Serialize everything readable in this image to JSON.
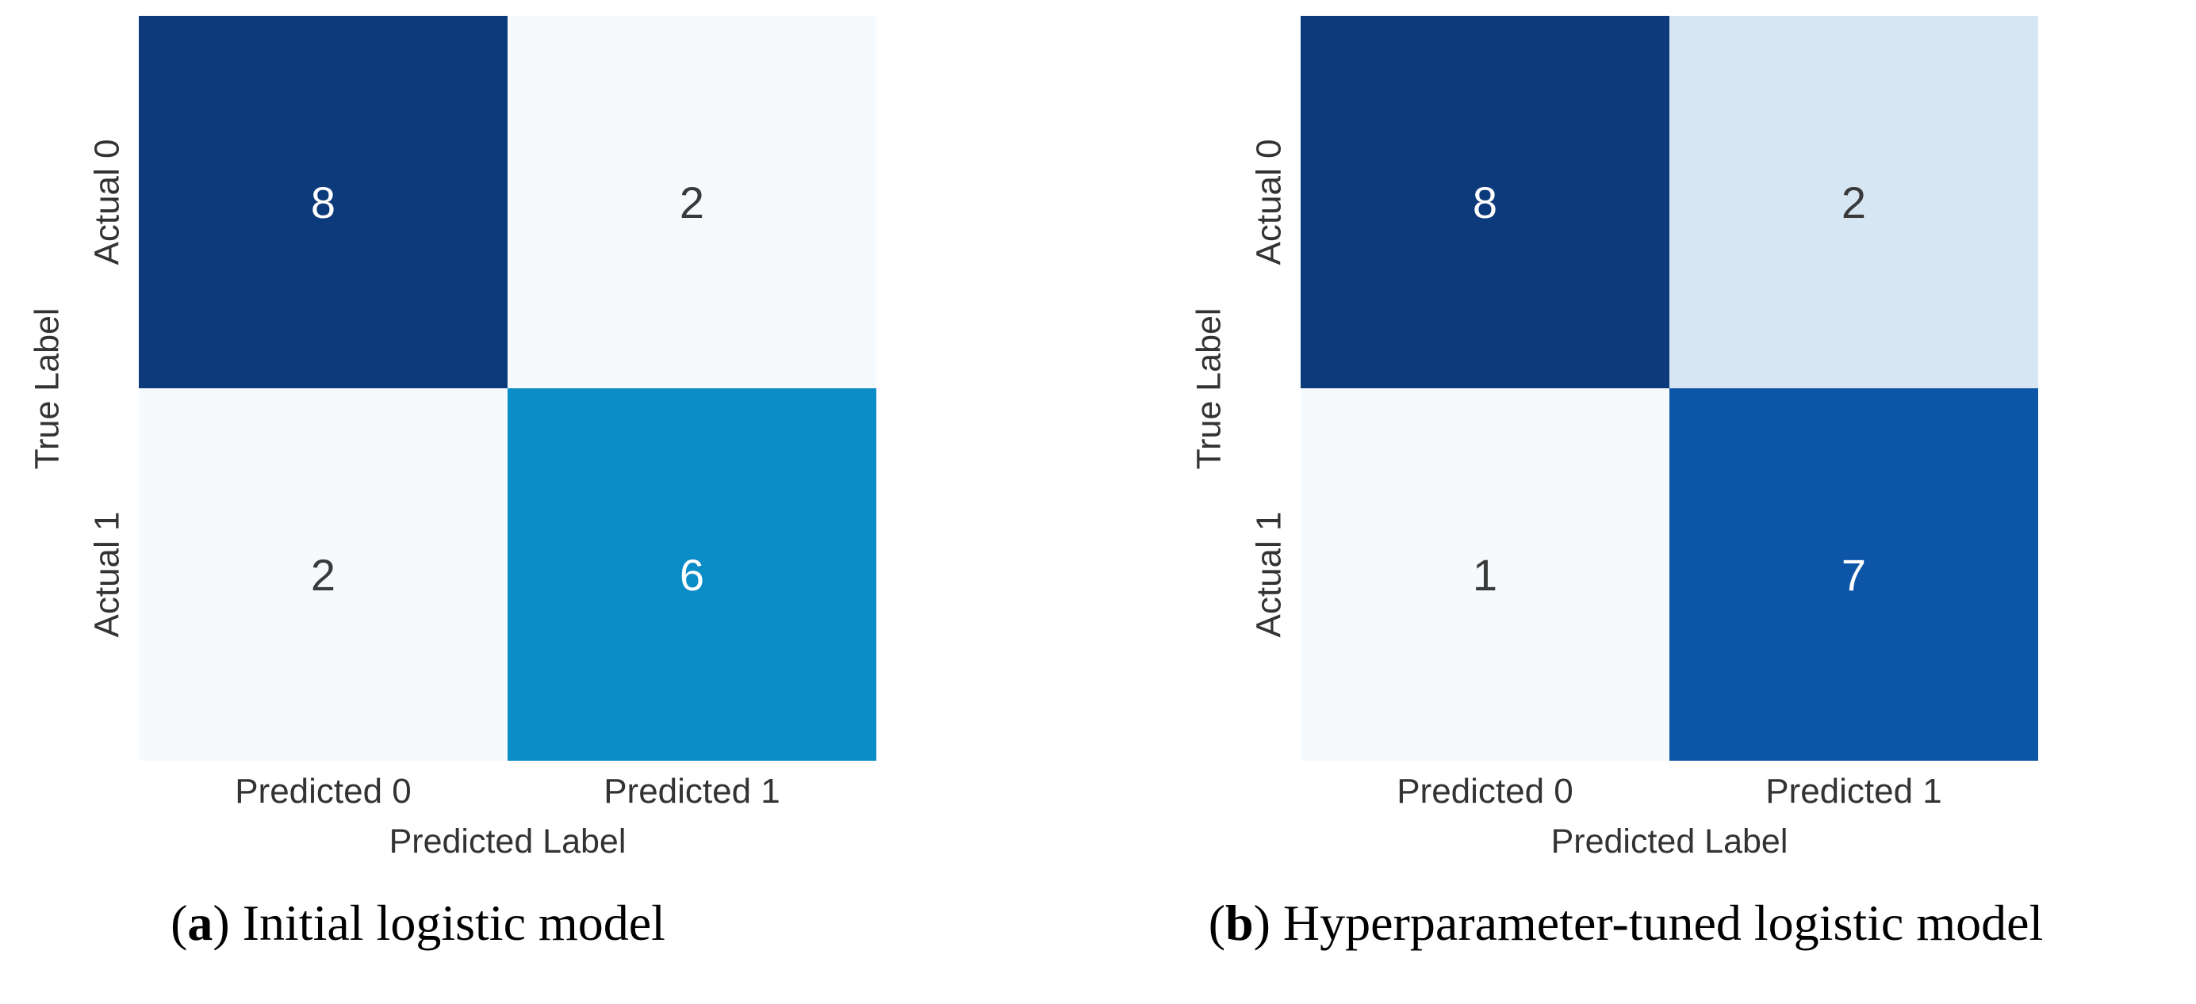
{
  "figure": {
    "panels": [
      {
        "caption": {
          "open": "(",
          "letter": "a",
          "rest": ") Initial logistic model"
        },
        "ylabel": "True Label",
        "xlabel": "Predicted Label",
        "yticks": [
          "Actual 0",
          "Actual 1"
        ],
        "xticks": [
          "Predicted 0",
          "Predicted 1"
        ],
        "cells": [
          {
            "value": "8",
            "bg": "#0c3a7a",
            "fg": "#ffffff"
          },
          {
            "value": "2",
            "bg": "#f6fafd",
            "fg": "#3a3a3a"
          },
          {
            "value": "2",
            "bg": "#f6fafd",
            "fg": "#3a3a3a"
          },
          {
            "value": "6",
            "bg": "#0a8cc6",
            "fg": "#ffffff"
          }
        ]
      },
      {
        "caption": {
          "open": "(",
          "letter": "b",
          "rest": ") Hyperparameter-tuned logistic model"
        },
        "ylabel": "True Label",
        "xlabel": "Predicted Label",
        "yticks": [
          "Actual 0",
          "Actual 1"
        ],
        "xticks": [
          "Predicted 0",
          "Predicted 1"
        ],
        "cells": [
          {
            "value": "8",
            "bg": "#0c3a7a",
            "fg": "#ffffff"
          },
          {
            "value": "2",
            "bg": "#d7e6f3",
            "fg": "#3a3a3a"
          },
          {
            "value": "1",
            "bg": "#f6fafd",
            "fg": "#3a3a3a"
          },
          {
            "value": "7",
            "bg": "#0d55a6",
            "fg": "#ffffff"
          }
        ]
      }
    ]
  },
  "chart_data": [
    {
      "type": "heatmap",
      "title": "(a) Initial logistic model",
      "xlabel": "Predicted Label",
      "ylabel": "True Label",
      "x_tick_labels": [
        "Predicted 0",
        "Predicted 1"
      ],
      "y_tick_labels": [
        "Actual 0",
        "Actual 1"
      ],
      "values": [
        [
          8,
          2
        ],
        [
          2,
          6
        ]
      ],
      "colormap": "Blues",
      "colorbar": false,
      "grid": false,
      "legend_position": "none"
    },
    {
      "type": "heatmap",
      "title": "(b) Hyperparameter-tuned logistic model",
      "xlabel": "Predicted Label",
      "ylabel": "True Label",
      "x_tick_labels": [
        "Predicted 0",
        "Predicted 1"
      ],
      "y_tick_labels": [
        "Actual 0",
        "Actual 1"
      ],
      "values": [
        [
          8,
          2
        ],
        [
          1,
          7
        ]
      ],
      "colormap": "Blues",
      "colorbar": false,
      "grid": false,
      "legend_position": "none"
    }
  ]
}
